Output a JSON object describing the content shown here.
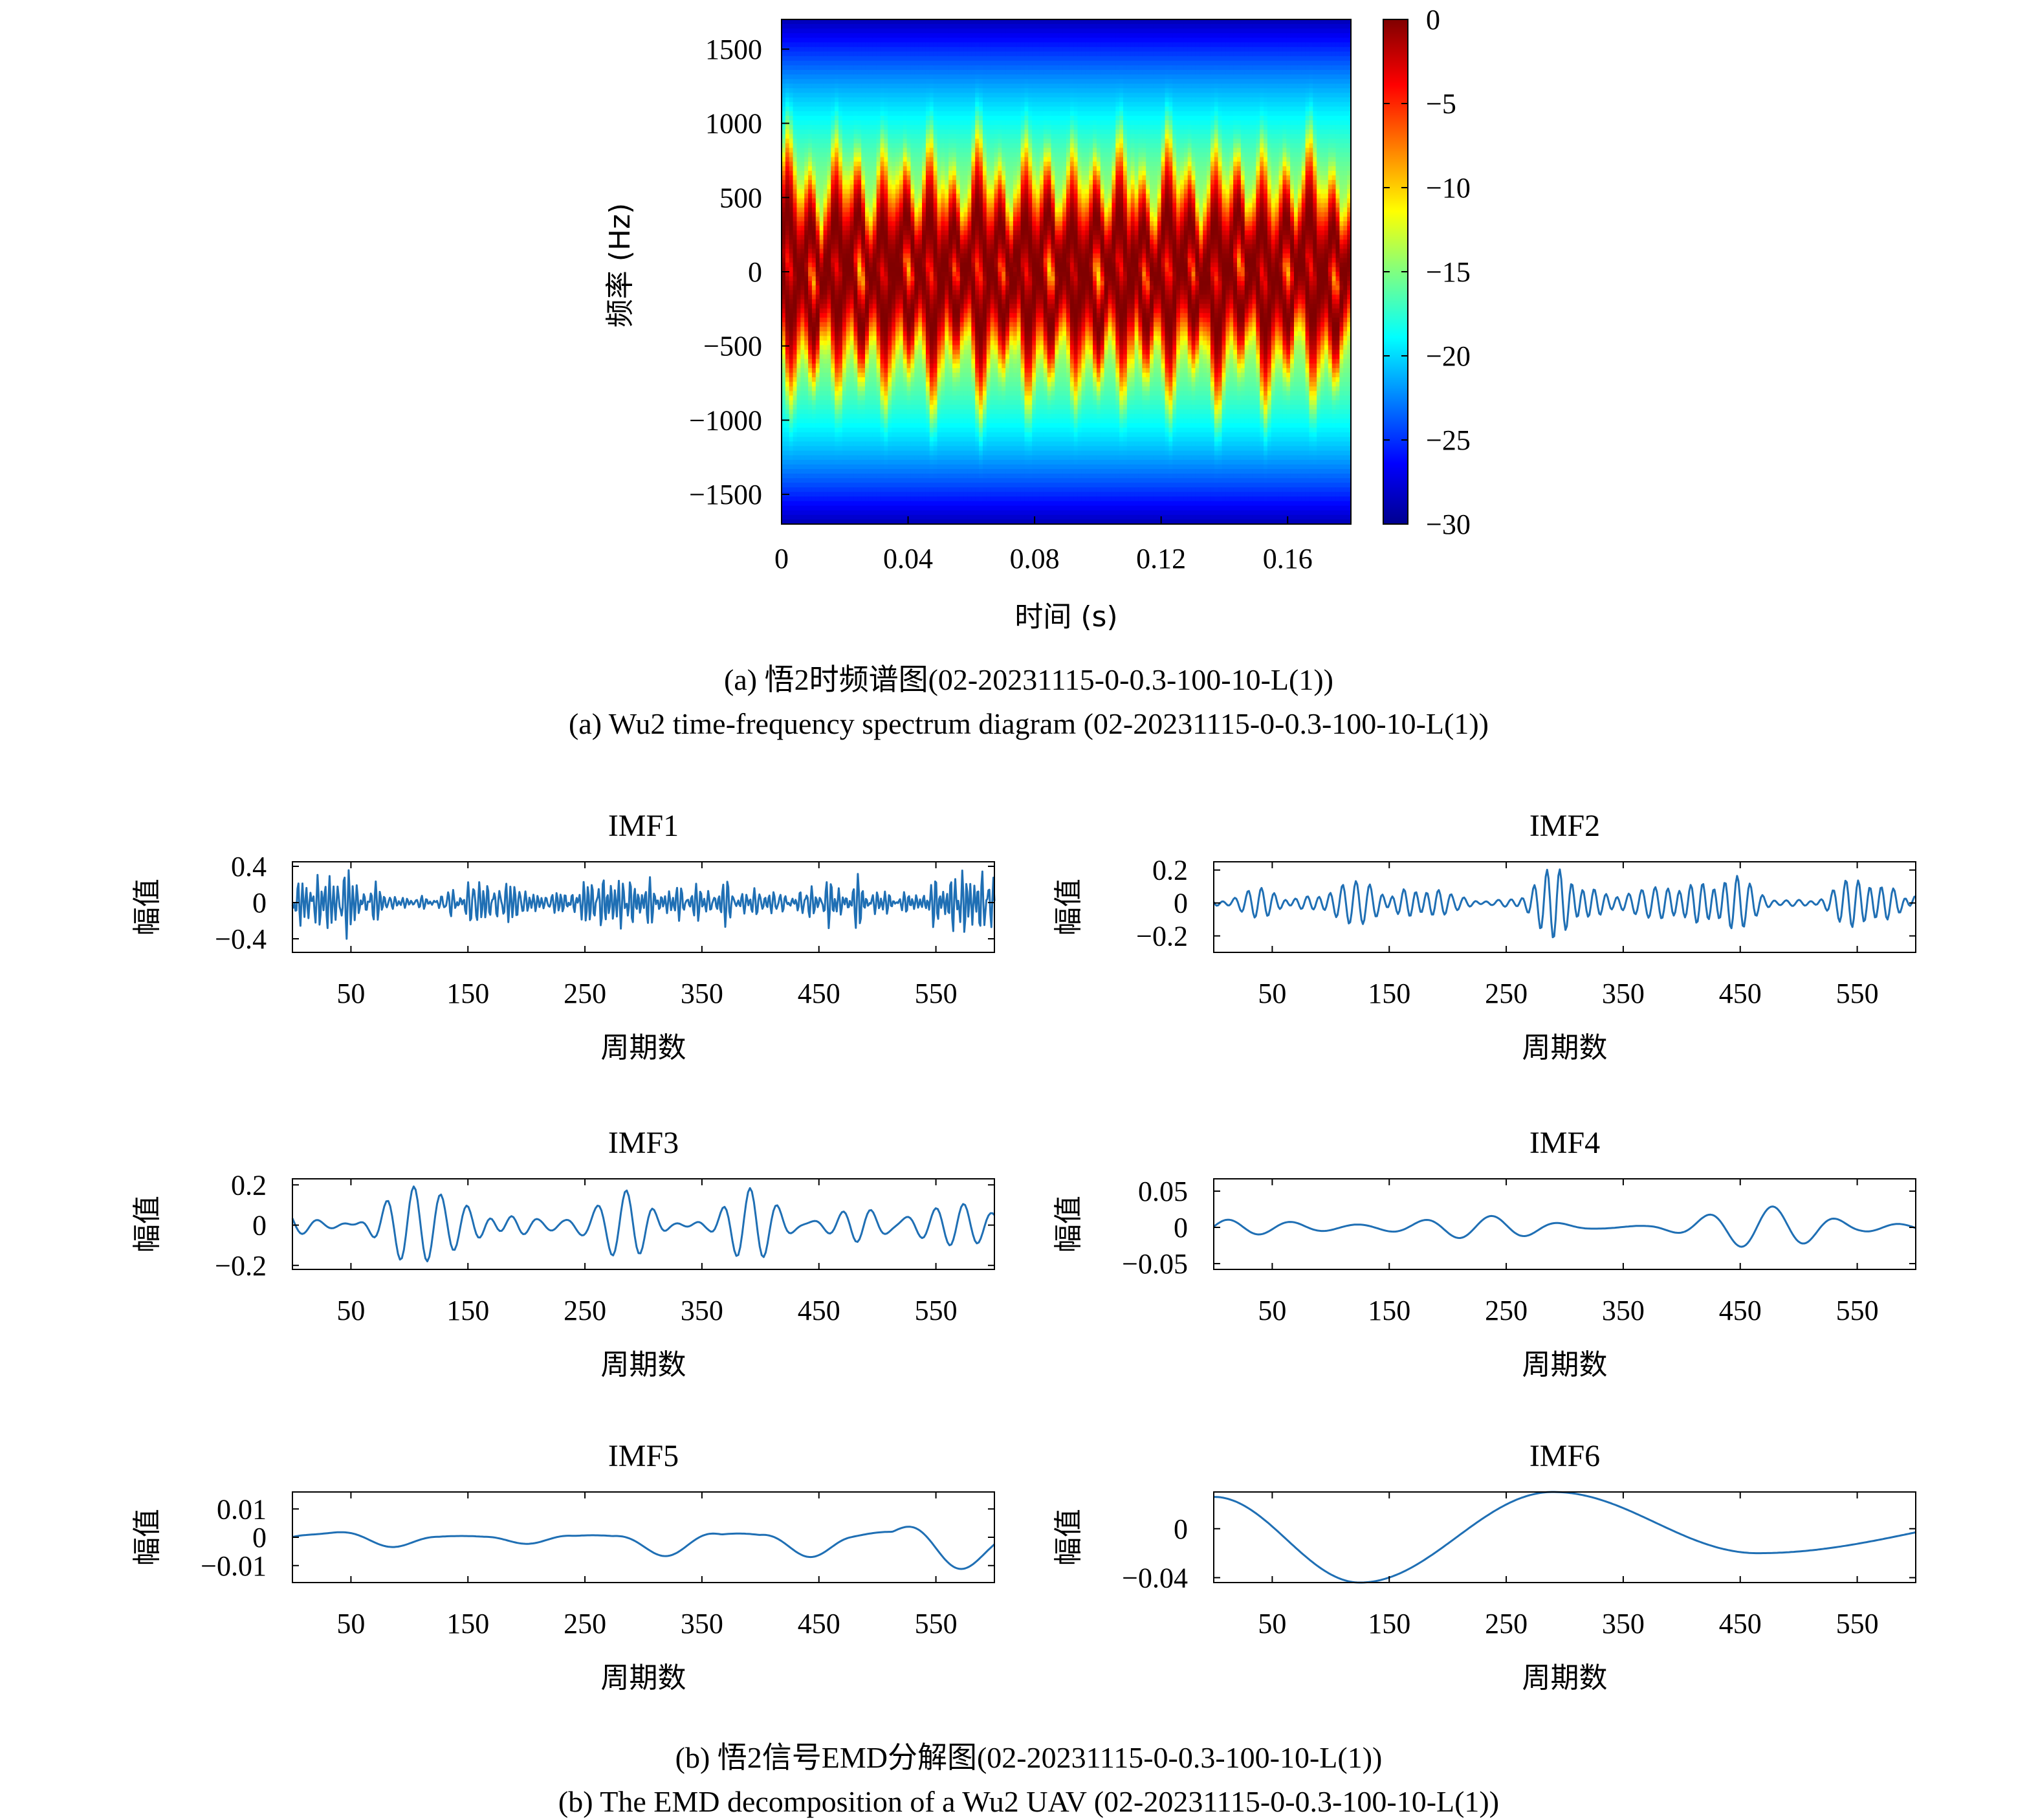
{
  "chart_data": [
    {
      "type": "heatmap",
      "title": "",
      "xlabel": "时间 (s)",
      "ylabel": "频率 (Hz)",
      "xlim": [
        0,
        0.18
      ],
      "ylim": [
        -1700,
        1700
      ],
      "xticks": [
        "0",
        "0.04",
        "0.08",
        "0.12",
        "0.16"
      ],
      "xtick_values": [
        0,
        0.04,
        0.08,
        0.12,
        0.16
      ],
      "yticks": [
        "1500",
        "1000",
        "500",
        "0",
        "−500",
        "−1000",
        "−1500"
      ],
      "ytick_values": [
        1500,
        1000,
        500,
        0,
        -500,
        -1000,
        -1500
      ],
      "colorbar": {
        "range": [
          -30,
          0
        ],
        "ticks": [
          "0",
          "−5",
          "−10",
          "−15",
          "−20",
          "−25",
          "−30"
        ],
        "tick_values": [
          0,
          -5,
          -10,
          -15,
          -20,
          -25,
          -30
        ],
        "colormap": "jet"
      },
      "energy_band": {
        "core_hz": [
          -300,
          500
        ],
        "max_extent_hz": [
          -1100,
          1100
        ],
        "oscillation_period_s": 0.0075
      },
      "caption_cn": "(a) 悟2时频谱图(02-20231115-0-0.3-100-10-L(1))",
      "caption_en": "(a) Wu2 time-frequency spectrum diagram (02-20231115-0-0.3-100-10-L(1))"
    },
    {
      "type": "line",
      "title": "IMF1",
      "xlabel": "周期数",
      "ylabel": "幅值",
      "xlim": [
        0,
        600
      ],
      "ylim": [
        -0.55,
        0.45
      ],
      "xticks": [
        "50",
        "150",
        "250",
        "350",
        "450",
        "550"
      ],
      "yticks": [
        "0.4",
        "0",
        "−0.4"
      ],
      "ytick_values": [
        0.4,
        0,
        -0.4
      ],
      "amplitude": 0.25,
      "min_period": 3,
      "max_period": 7,
      "seed": 11
    },
    {
      "type": "line",
      "title": "IMF2",
      "xlabel": "周期数",
      "ylabel": "幅值",
      "xlim": [
        0,
        600
      ],
      "ylim": [
        -0.3,
        0.25
      ],
      "xticks": [
        "50",
        "150",
        "250",
        "350",
        "450",
        "550"
      ],
      "yticks": [
        "0.2",
        "0",
        "−0.2"
      ],
      "ytick_values": [
        0.2,
        0,
        -0.2
      ],
      "amplitude": 0.13,
      "min_period": 9,
      "max_period": 14,
      "seed": 23
    },
    {
      "type": "line",
      "title": "IMF3",
      "xlabel": "周期数",
      "ylabel": "幅值",
      "xlim": [
        0,
        600
      ],
      "ylim": [
        -0.22,
        0.23
      ],
      "xticks": [
        "50",
        "150",
        "250",
        "350",
        "450",
        "550"
      ],
      "yticks": [
        "0.2",
        "0",
        "−0.2"
      ],
      "ytick_values": [
        0.2,
        0,
        -0.2
      ],
      "amplitude": 0.12,
      "min_period": 20,
      "max_period": 28,
      "seed": 37
    },
    {
      "type": "line",
      "title": "IMF4",
      "xlabel": "周期数",
      "ylabel": "幅值",
      "xlim": [
        0,
        600
      ],
      "ylim": [
        -0.058,
        0.067
      ],
      "xticks": [
        "50",
        "150",
        "250",
        "350",
        "450",
        "550"
      ],
      "yticks": [
        "0.05",
        "0",
        "−0.05"
      ],
      "ytick_values": [
        0.05,
        0,
        -0.05
      ],
      "amplitude": 0.018,
      "min_period": 48,
      "max_period": 62,
      "seed": 41
    },
    {
      "type": "line",
      "title": "IMF5",
      "xlabel": "周期数",
      "ylabel": "幅值",
      "xlim": [
        0,
        600
      ],
      "ylim": [
        -0.016,
        0.016
      ],
      "xticks": [
        "50",
        "150",
        "250",
        "350",
        "450",
        "550"
      ],
      "yticks": [
        "0.01",
        "0",
        "−0.01"
      ],
      "ytick_values": [
        0.01,
        0,
        -0.01
      ],
      "amplitude": 0.007,
      "min_period": 120,
      "max_period": 150,
      "seed": 53
    },
    {
      "type": "line",
      "title": "IMF6",
      "xlabel": "周期数",
      "ylabel": "幅值",
      "xlim": [
        0,
        600
      ],
      "ylim": [
        -0.044,
        0.03
      ],
      "xticks": [
        "50",
        "150",
        "250",
        "350",
        "450",
        "550"
      ],
      "yticks": [
        "0",
        "−0.04"
      ],
      "ytick_values": [
        0,
        -0.04
      ],
      "seed": 61
    }
  ],
  "captions": {
    "a_cn": "(a) 悟2时频谱图(02-20231115-0-0.3-100-10-L(1))",
    "a_en": "(a) Wu2 time-frequency spectrum diagram (02-20231115-0-0.3-100-10-L(1))",
    "b_cn": "(b) 悟2信号EMD分解图(02-20231115-0-0.3-100-10-L(1))",
    "b_en": "(b) The EMD decomposition of a Wu2 UAV (02-20231115-0-0.3-100-10-L(1))"
  },
  "colors": {
    "line": "#1f6fb4",
    "axis": "#000000"
  }
}
